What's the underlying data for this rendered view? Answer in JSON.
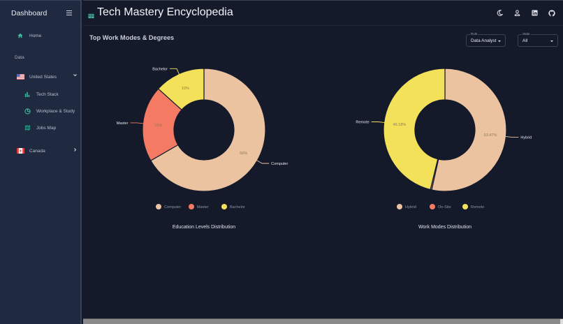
{
  "sidebar": {
    "title": "Dashboard",
    "menu_icon": "hamburger-icon",
    "home": {
      "label": "Home",
      "icon": "home-icon"
    },
    "section_label": "Data",
    "countries": [
      {
        "label": "United States",
        "flag": "us-flag",
        "expanded": true,
        "chevron": "⌄",
        "children": [
          {
            "label": "Tech Stack",
            "icon": "bar-chart-icon"
          },
          {
            "label": "Workplace & Study",
            "icon": "pie-chart-icon"
          },
          {
            "label": "Jobs Map",
            "icon": "map-icon"
          }
        ]
      },
      {
        "label": "Canada",
        "flag": "canada-flag",
        "expanded": false,
        "chevron": "›"
      }
    ]
  },
  "header": {
    "title": "Tech Mastery Encyclopedia",
    "icons": [
      "moon-icon",
      "user-icon",
      "linkedin-icon",
      "github-icon"
    ]
  },
  "page": {
    "section_title": "Top Work Modes & Degrees",
    "filters": {
      "role": {
        "caption": "Role",
        "value": "Data Analyst"
      },
      "state": {
        "caption": "State",
        "value": "All"
      }
    }
  },
  "colors": {
    "peach": "#ebc3a0",
    "coral": "#f47a63",
    "yellow": "#f3e15a",
    "background": "#151a2b",
    "sidebar": "#1f2940",
    "accent": "#3bb8a0"
  },
  "chart_data": [
    {
      "type": "pie",
      "variant": "donut",
      "title": "Education Levels Distribution",
      "categories": [
        "Computer",
        "Master",
        "Bachelor"
      ],
      "values": [
        50,
        15,
        10
      ],
      "value_labels": [
        "50%",
        "15%",
        "10%"
      ],
      "colors": [
        "#ebc3a0",
        "#f47a63",
        "#f3e15a"
      ],
      "legend": [
        "Computer",
        "Master",
        "Bachelor"
      ],
      "legend_position": "bottom"
    },
    {
      "type": "pie",
      "variant": "donut",
      "title": "Work Modes Distribution",
      "categories": [
        "Hybrid",
        "On-Site",
        "Remote"
      ],
      "values": [
        53.47,
        0.35,
        46.18
      ],
      "value_labels": [
        "53.47%",
        "",
        "46.18%"
      ],
      "colors": [
        "#ebc3a0",
        "#f47a63",
        "#f3e15a"
      ],
      "legend": [
        "Hybrid",
        "On-Site",
        "Remote"
      ],
      "legend_position": "bottom"
    }
  ]
}
